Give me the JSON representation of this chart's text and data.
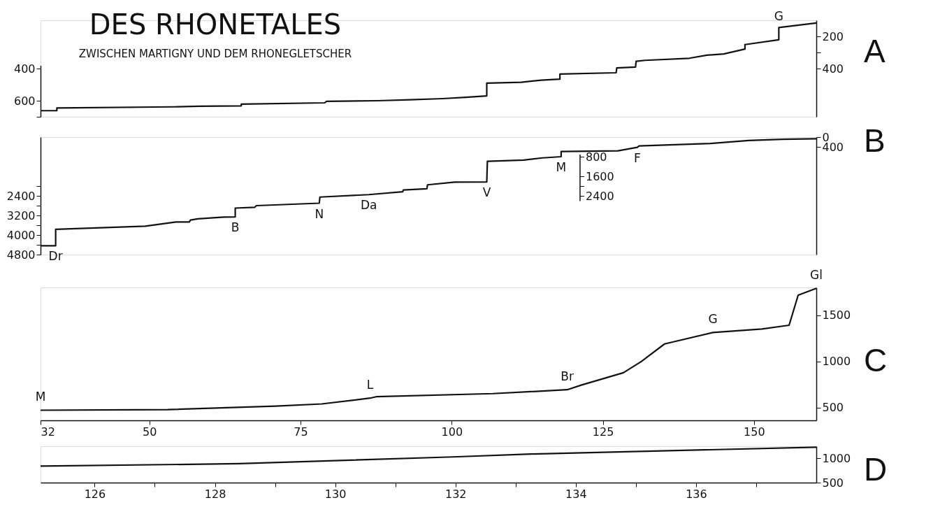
{
  "chart_data": [
    {
      "type": "line",
      "title": "DES RHONETALES",
      "subtitle": "ZWISCHEN MARTIGNY UND DEM RHONEGLETSCHER",
      "tick_labels": "y",
      "xlim": [
        32,
        160.3
      ],
      "ylim": [
        700,
        380
      ],
      "yticks": [
        400,
        600,
        {
          "value": 700,
          "label": null
        }
      ],
      "y2lim": [
        700,
        100
      ],
      "y2ticks": [
        200,
        {
          "value": 300,
          "label": null
        },
        400
      ],
      "grid": false,
      "line_style": "solid",
      "marker": "none",
      "series": [
        {
          "name": "A",
          "color": "#111111",
          "axis": "y2",
          "x": [
            32,
            34.7,
            34.7,
            54.0,
            58.3,
            65.2,
            65.2,
            79.0,
            79.3,
            87.7,
            93.1,
            98.5,
            102.3,
            105.8,
            105.8,
            111.5,
            114.8,
            117.9,
            117.9,
            127.2,
            127.3,
            130.4,
            130.5,
            132.0,
            139.3,
            142.2,
            145.0,
            148.5,
            148.5,
            154.1,
            154.1,
            160.3
          ],
          "values": [
            662,
            662,
            645,
            638,
            634,
            632,
            621,
            613,
            604,
            600,
            594,
            587,
            579,
            570,
            491,
            485,
            472,
            466,
            434,
            426,
            396,
            391,
            355,
            349,
            336,
            317,
            309,
            279,
            251,
            221,
            145,
            117
          ]
        }
      ],
      "annotations": [
        {
          "text": "G",
          "x": 154.1,
          "y": 145
        }
      ]
    },
    {
      "type": "line",
      "tick_labels": "y",
      "xlim": [
        32,
        160.3
      ],
      "ylim": [
        4800,
        0
      ],
      "yticks": [
        {
          "value": 2000,
          "label": null
        },
        2400,
        {
          "value": 2800,
          "label": null
        },
        3200,
        {
          "value": 3600,
          "label": null
        },
        4000,
        {
          "value": 4400,
          "label": null
        },
        4800
      ],
      "y2lim": [
        4800,
        0
      ],
      "y2ticks": [
        0,
        400
      ],
      "y3lim": [
        2600,
        700
      ],
      "y3ticks": [
        800,
        1600,
        {
          "value": 2000,
          "label": null
        },
        2400
      ],
      "grid": false,
      "line_style": "solid",
      "marker": "none",
      "series": [
        {
          "name": "B",
          "color": "#111111",
          "x": [
            32,
            34.5,
            34.5,
            49.3,
            54.4,
            56.6,
            56.8,
            58.0,
            62.3,
            64.2,
            64.2,
            67.4,
            67.7,
            78.1,
            78.2,
            86.3,
            91.9,
            92.0,
            95.9,
            96.0,
            100.5,
            105.8,
            105.9,
            111.9,
            115.0,
            118.1,
            118.1,
            127.5,
            130.7,
            131.0,
            142.8,
            149.1,
            154.7,
            160.3
          ],
          "values": [
            4440,
            4440,
            3770,
            3640,
            3470,
            3470,
            3390,
            3340,
            3270,
            3260,
            2900,
            2870,
            2800,
            2700,
            2450,
            2350,
            2230,
            2160,
            2110,
            1950,
            1840,
            1830,
            990,
            940,
            850,
            800,
            590,
            560,
            420,
            360,
            260,
            140,
            90,
            70
          ]
        }
      ],
      "annotations": [
        {
          "text": "Dr",
          "x": 34.5,
          "y": 4440
        },
        {
          "text": "B",
          "x": 64.2,
          "y": 3260
        },
        {
          "text": "N",
          "x": 78.1,
          "y": 2700
        },
        {
          "text": "Da",
          "x": 86.3,
          "y": 2350
        },
        {
          "text": "V",
          "x": 105.8,
          "y": 1830
        },
        {
          "text": "M",
          "x": 118.1,
          "y": 800
        },
        {
          "text": "F",
          "x": 130.7,
          "y": 420
        }
      ]
    },
    {
      "type": "line",
      "xlim": [
        32,
        160.3
      ],
      "xticks": [
        32,
        50,
        75,
        100,
        125,
        150
      ],
      "ylim": [
        360,
        1800
      ],
      "yticks": [
        500,
        1000,
        1500
      ],
      "grid": false,
      "line_style": "solid",
      "marker": "none",
      "series": [
        {
          "name": "C",
          "color": "#111111",
          "x": [
            32,
            53.0,
            70.9,
            78.5,
            86.5,
            87.5,
            106.8,
            119.1,
            121.5,
            128.4,
            131.4,
            135.2,
            143.2,
            151.3,
            155.8,
            157.3,
            160.3
          ],
          "values": [
            470,
            477,
            515,
            538,
            601,
            616,
            650,
            692,
            744,
            876,
            1000,
            1188,
            1312,
            1350,
            1391,
            1717,
            1790
          ]
        }
      ],
      "annotations": [
        {
          "text": "M",
          "x": 32,
          "y": 470
        },
        {
          "text": "L",
          "x": 86.5,
          "y": 601
        },
        {
          "text": "Br",
          "x": 119.1,
          "y": 692
        },
        {
          "text": "G",
          "x": 143.2,
          "y": 1312
        },
        {
          "text": "Gl",
          "x": 160.3,
          "y": 1790
        }
      ]
    },
    {
      "type": "line",
      "xlim": [
        125.1,
        138
      ],
      "xticks": [
        126,
        {
          "value": 127,
          "label": null
        },
        128,
        {
          "value": 129,
          "label": null
        },
        130,
        {
          "value": 131,
          "label": null
        },
        132,
        {
          "value": 133,
          "label": null
        },
        134,
        {
          "value": 135,
          "label": null
        },
        136,
        {
          "value": 137,
          "label": null
        }
      ],
      "ylim": [
        500,
        1250
      ],
      "yticks": [
        500,
        1000
      ],
      "grid": false,
      "line_style": "solid",
      "marker": "none",
      "series": [
        {
          "name": "D",
          "color": "#111111",
          "x": [
            125.1,
            128.4,
            131.96,
            133.25,
            138.0
          ],
          "values": [
            840,
            890,
            1030,
            1090,
            1230
          ]
        }
      ]
    }
  ]
}
